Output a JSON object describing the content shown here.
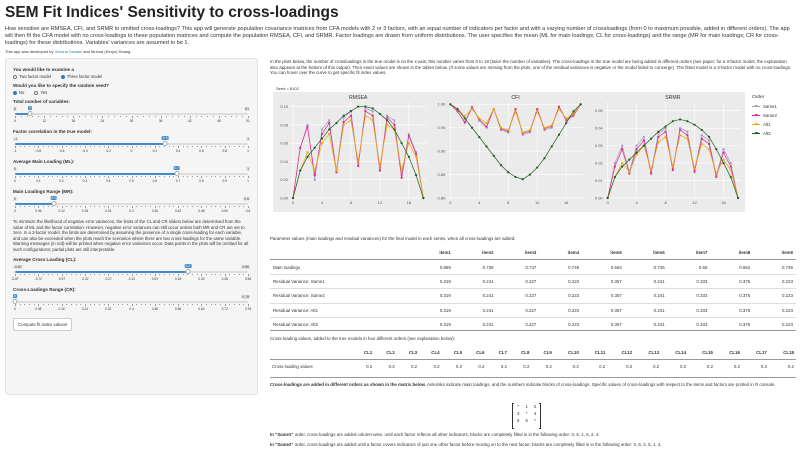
{
  "app": {
    "title": "SEM Fit Indices' Sensitivity to cross-loadings",
    "description": "How sensitive are RMSEA, CFI, and SRMR to omitted cross-loadings? This app will generate population covariance matrices from CFA models with 2 or 3 factors, with an equal number of indicators per factor and with a varying number of crossloadings (from 0 to maximum possible, added in different orders). The app will then fit the CFA model with no cross-loadings to these population matrices and compute the population RMSEA, CFI, and SRMR. Factor loadings are drawn from uniform distributions. The user specifies the mean (ML for main loadings; CL for cross-loadings) and the range (MR for main loadings; CR for cross-loadings) for these distributions. Variables' variances are assumed to be 1.",
    "credit_prefix": "This app was developed by",
    "credit_author1": "Victoria Savalei",
    "credit_mid": "and Muhua (Keryn) Huang"
  },
  "sidebar": {
    "examine_label": "You would like to examine a",
    "examine_options": [
      "Two factor model",
      "Three factor model"
    ],
    "seed_label": "Would you like to specify the random seed?",
    "seed_options": [
      "No",
      "Yes"
    ],
    "sliders": [
      {
        "label": "Total number of variables:",
        "min": "6",
        "max": "51",
        "value": "9",
        "ratio": 0.0667,
        "ticks": [
          "6",
          "12",
          "18",
          "24",
          "30",
          "36",
          "42",
          "48",
          "51"
        ]
      },
      {
        "label": "Factor correlation in the true model:",
        "min": "-1",
        "max": "1",
        "value": "0.3",
        "ratio": 0.65,
        "ticks": [
          "-1",
          "-0.8",
          "-0.6",
          "-0.4",
          "-0.2",
          "0",
          "0.2",
          "0.4",
          "0.6",
          "0.8",
          "1"
        ]
      },
      {
        "label": "Average Main Loading (ML):",
        "min": "0",
        "max": "1",
        "value": "0.7",
        "ratio": 0.7,
        "ticks": [
          "0",
          "0.1",
          "0.2",
          "0.3",
          "0.4",
          "0.5",
          "0.6",
          "0.7",
          "0.8",
          "0.9",
          "1"
        ]
      },
      {
        "label": "Main Loadings Range (MR):",
        "min": "0",
        "max": "0.6",
        "value": "0.1",
        "ratio": 0.1667,
        "ticks": [
          "0",
          "0.06",
          "0.12",
          "0.18",
          "0.24",
          "0.3",
          "0.36",
          "0.42",
          "0.48",
          "0.54",
          "0.6"
        ]
      }
    ],
    "note": "To minimize the likelihood of negative error variances, the limits of the CL and CR sliders below are determined from the value of ML and the factor correlation. However, negative error variances can still occur unless both MR and CR are set to zero. In a 3-factor model, the limits are determined by assuming the presence of a single cross-loading for each variable, and can also be exceeded when the plots reach the scenarios where there are two cross-loadings for the same variable. Warning messages (in red) will be printed when negative error variances occur. Data points in the plots will be omitted for all such configurations; partial plots are still interpretable.",
    "sliders2": [
      {
        "label": "Average Cross Loading (CL):",
        "min": "-0.87",
        "max": "0.56",
        "value": "0.2",
        "ratio": 0.7483,
        "ticks": [
          "-0.87",
          "-0.72",
          "-0.57",
          "-0.42",
          "-0.27",
          "-0.12",
          "0.03",
          "0.18",
          "0.33",
          "0.48",
          "0.56"
        ]
      },
      {
        "label": "Cross-Loadings Range (CR):",
        "min": "0",
        "max": "0.78",
        "value": "0",
        "ratio": 0,
        "ticks": [
          "0",
          "0.08",
          "0.16",
          "0.24",
          "0.32",
          "0.4",
          "0.48",
          "0.56",
          "0.64",
          "0.72",
          "0.78"
        ]
      }
    ],
    "compute_button": "Compute fit index values!"
  },
  "main": {
    "intro": "In the plots below, the number of crossloadings in the true model is on the x-axis; this number varies from 0 to 18 (twice the number of variables). The cross-loadings in the true model are being added in different orders (see paper; for a 3-factor model, the explanation also appears at the bottom of this output). Their exact values are shown in the tables below. (If some values are missing from the plots, one of the residual variances is negative or the model failed to converge). The fitted model is a 3-factor model with no cross-loadings. You can hover over the curve to get specific fit index values.",
    "seed_text": "Seed = 8102",
    "params_caption": "Parameter values (main loadings and residual variances) for the final model in each series, when all cross-loadings are added:",
    "cl_caption": "Cross-loading values, added to the true models in four different orders (see explanation below):",
    "orders_title": "Cross-loadings are added in different orders as shown in the matrix below.",
    "orders_text": "Asterisks indicate main loadings, and the numbers indicate blocks of cross-loadings. Specific values of cross-loadings with respect to the items and factors are printed in R console.",
    "same1_name": "In \"Same1\"",
    "same1_text": "order, cross-loadings are added column-wise, until each factor reflects all other indicators; blocks are completely filled in in the following order: 3, 5, 1, 6, 2, 4.",
    "same2_name": "In \"Same2\"",
    "same2_text": "order, cross-loadings are added until a factor covers indicators of just one other factor before moving on to the next factor; blocks are completely filled in in the following order: 3, 6, 2, 5, 1, 4.",
    "matrix": [
      [
        "*",
        "1",
        "2"
      ],
      [
        "3",
        "*",
        "4"
      ],
      [
        "5",
        "6",
        "*"
      ]
    ]
  },
  "params_table": {
    "headers": [
      "",
      "item1",
      "item2",
      "item3",
      "item4",
      "item5",
      "item6",
      "item7",
      "item8",
      "item9"
    ],
    "rows": [
      [
        "Main loadings",
        "0.689",
        "0.738",
        "0.747",
        "0.749",
        "0.664",
        "0.736",
        "0.68",
        "0.652",
        "0.749"
      ],
      [
        "Residual Variance: Same1",
        "0.319",
        "0.241",
        "0.227",
        "0.223",
        "0.357",
        "0.241",
        "0.333",
        "0.375",
        "0.223"
      ],
      [
        "Residual Variance: Same2",
        "0.319",
        "0.241",
        "0.227",
        "0.223",
        "0.357",
        "0.241",
        "0.333",
        "0.375",
        "0.223"
      ],
      [
        "Residual Variance: Alt1",
        "0.319",
        "0.241",
        "0.227",
        "0.223",
        "0.357",
        "0.241",
        "0.333",
        "0.375",
        "0.223"
      ],
      [
        "Residual Variance: Alt2",
        "0.319",
        "0.241",
        "0.227",
        "0.223",
        "0.357",
        "0.241",
        "0.333",
        "0.375",
        "0.223"
      ]
    ]
  },
  "cl_table": {
    "headers": [
      "",
      "CL1",
      "CL2",
      "CL3",
      "CL4",
      "CL5",
      "CL6",
      "CL7",
      "CL8",
      "CL9",
      "CL10",
      "CL11",
      "CL12",
      "CL13",
      "CL14",
      "CL15",
      "CL16",
      "CL17",
      "CL18"
    ],
    "rows": [
      [
        "Cross loading values",
        "0.2",
        "0.2",
        "0.2",
        "0.2",
        "0.2",
        "0.2",
        "0.2",
        "0.2",
        "0.2",
        "0.2",
        "0.2",
        "0.2",
        "0.2",
        "0.2",
        "0.2",
        "0.2",
        "0.2",
        "0.2"
      ]
    ]
  },
  "chart_data": [
    {
      "type": "line",
      "title": "RMSEA",
      "x": [
        0,
        1,
        2,
        3,
        4,
        5,
        6,
        7,
        8,
        9,
        10,
        11,
        12,
        13,
        14,
        15,
        16,
        17,
        18
      ],
      "ylim": [
        0,
        0.105
      ],
      "yticks": [
        "0.00",
        "0.02",
        "0.04",
        "0.06",
        "0.08",
        "0.10"
      ],
      "xticks": [
        "0",
        "4",
        "8",
        "12",
        "16"
      ],
      "series": [
        {
          "name": "Same1",
          "color": "#9e9ac8",
          "values": [
            0,
            0.055,
            0.08,
            0.02,
            0.075,
            0.085,
            0.03,
            0.088,
            0.095,
            0.035,
            0.098,
            0.095,
            0.03,
            0.09,
            0.085,
            0.025,
            0.07,
            0.05,
            0
          ]
        },
        {
          "name": "Same2",
          "color": "#e7298a",
          "values": [
            0,
            0.055,
            0.078,
            0.025,
            0.07,
            0.082,
            0.028,
            0.083,
            0.09,
            0.035,
            0.095,
            0.09,
            0.03,
            0.088,
            0.08,
            0.022,
            0.068,
            0.048,
            0
          ]
        },
        {
          "name": "Alt1",
          "color": "#e6ab02",
          "values": [
            0,
            0.03,
            0.05,
            0.03,
            0.06,
            0.07,
            0.03,
            0.08,
            0.085,
            0.04,
            0.09,
            0.085,
            0.035,
            0.08,
            0.075,
            0.03,
            0.06,
            0.045,
            0
          ]
        },
        {
          "name": "Alt2",
          "color": "#1b5e20",
          "values": [
            0,
            0.03,
            0.045,
            0.055,
            0.065,
            0.075,
            0.082,
            0.09,
            0.095,
            0.1,
            0.1,
            0.098,
            0.092,
            0.085,
            0.075,
            0.06,
            0.045,
            0.025,
            0
          ]
        }
      ]
    },
    {
      "type": "line",
      "title": "CFI",
      "x": [
        0,
        1,
        2,
        3,
        4,
        5,
        6,
        7,
        8,
        9,
        10,
        11,
        12,
        13,
        14,
        15,
        16,
        17,
        18
      ],
      "ylim": [
        0.8,
        1.005
      ],
      "yticks": [
        "0.80",
        "0.85",
        "0.90",
        "0.95",
        "1.00"
      ],
      "xticks": [
        "0",
        "4",
        "8",
        "12",
        "16"
      ],
      "series": [
        {
          "name": "Same1",
          "color": "#9e9ac8",
          "values": [
            1,
            0.985,
            0.96,
            0.995,
            0.965,
            0.95,
            0.99,
            0.945,
            0.94,
            0.99,
            0.935,
            0.94,
            0.99,
            0.945,
            0.95,
            0.995,
            0.965,
            0.975,
            1
          ]
        },
        {
          "name": "Same2",
          "color": "#e7298a",
          "values": [
            1,
            0.985,
            0.962,
            0.993,
            0.968,
            0.952,
            0.99,
            0.948,
            0.942,
            0.99,
            0.938,
            0.943,
            0.99,
            0.948,
            0.953,
            0.995,
            0.967,
            0.977,
            1
          ]
        },
        {
          "name": "Alt1",
          "color": "#e6ab02",
          "values": [
            1,
            0.99,
            0.975,
            0.99,
            0.97,
            0.96,
            0.99,
            0.95,
            0.945,
            0.985,
            0.94,
            0.945,
            0.985,
            0.95,
            0.955,
            0.99,
            0.97,
            0.98,
            1
          ]
        },
        {
          "name": "Alt2",
          "color": "#1b5e20",
          "values": [
            1,
            0.99,
            0.97,
            0.95,
            0.93,
            0.91,
            0.89,
            0.87,
            0.855,
            0.845,
            0.84,
            0.85,
            0.865,
            0.885,
            0.91,
            0.935,
            0.96,
            0.985,
            1
          ]
        }
      ]
    },
    {
      "type": "line",
      "title": "SRMR",
      "x": [
        0,
        1,
        2,
        3,
        4,
        5,
        6,
        7,
        8,
        9,
        10,
        11,
        12,
        13,
        14,
        15,
        16,
        17,
        18
      ],
      "ylim": [
        0,
        0.055
      ],
      "yticks": [
        "0.00",
        "0.01",
        "0.02",
        "0.03",
        "0.04",
        "0.05"
      ],
      "xticks": [
        "0",
        "4",
        "8",
        "12",
        "16"
      ],
      "series": [
        {
          "name": "Same1",
          "color": "#9e9ac8",
          "values": [
            0,
            0.02,
            0.03,
            0.015,
            0.03,
            0.035,
            0.015,
            0.037,
            0.04,
            0.017,
            0.04,
            0.038,
            0.016,
            0.036,
            0.033,
            0.013,
            0.028,
            0.02,
            0
          ]
        },
        {
          "name": "Same2",
          "color": "#e7298a",
          "values": [
            0,
            0.018,
            0.028,
            0.014,
            0.028,
            0.033,
            0.014,
            0.035,
            0.038,
            0.016,
            0.039,
            0.036,
            0.015,
            0.034,
            0.031,
            0.012,
            0.026,
            0.018,
            0
          ]
        },
        {
          "name": "Alt1",
          "color": "#e6ab02",
          "values": [
            0,
            0.012,
            0.02,
            0.015,
            0.025,
            0.03,
            0.016,
            0.032,
            0.035,
            0.018,
            0.036,
            0.034,
            0.017,
            0.031,
            0.028,
            0.014,
            0.022,
            0.016,
            0
          ]
        },
        {
          "name": "Alt2",
          "color": "#1b5e20",
          "values": [
            0,
            0.012,
            0.018,
            0.022,
            0.026,
            0.03,
            0.034,
            0.038,
            0.041,
            0.044,
            0.045,
            0.044,
            0.042,
            0.039,
            0.035,
            0.028,
            0.02,
            0.012,
            0
          ]
        }
      ]
    }
  ],
  "legend": {
    "title": "Order",
    "items": [
      "Same1",
      "Same2",
      "Alt1",
      "Alt2"
    ]
  }
}
